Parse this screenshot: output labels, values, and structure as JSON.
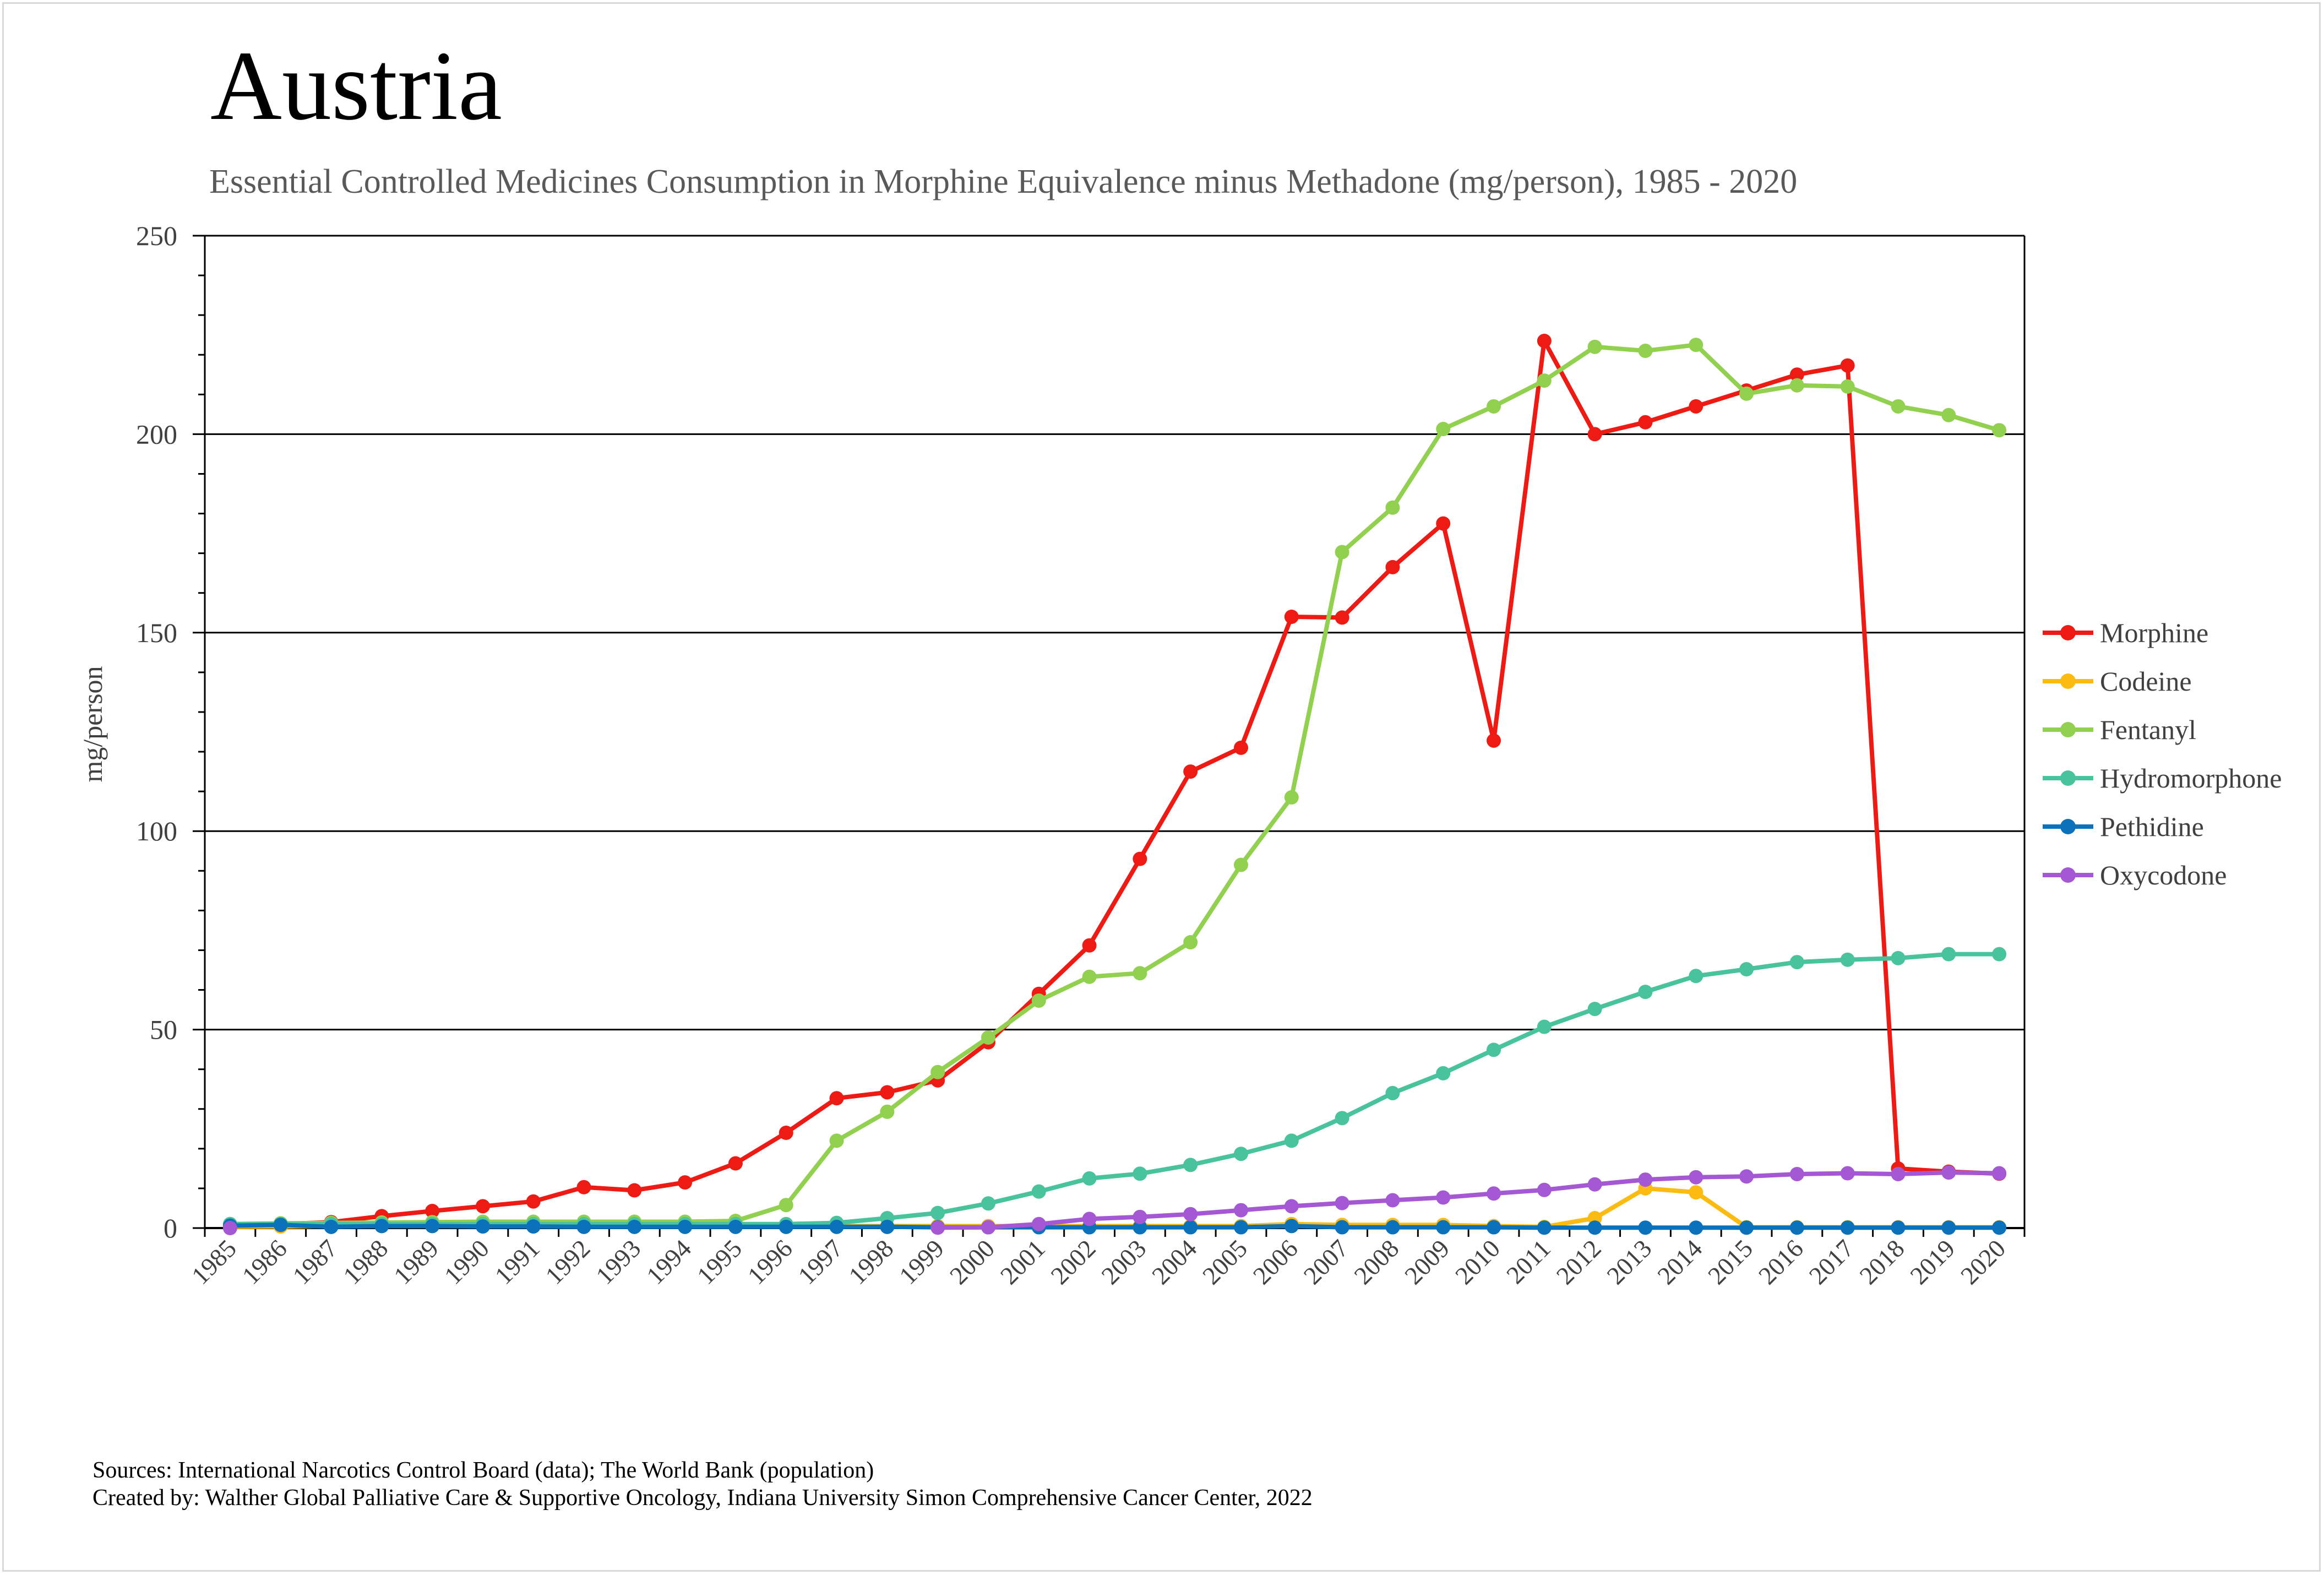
{
  "chart_data": {
    "type": "line",
    "title": "Austria",
    "subtitle": "Essential Controlled Medicines Consumption in Morphine Equivalence minus Methadone (mg/person), 1985 - 2020",
    "xlabel": "",
    "ylabel": "mg/person",
    "ylim": [
      0,
      250
    ],
    "yticks": [
      "0",
      "50",
      "100",
      "150",
      "200",
      "250"
    ],
    "grid": true,
    "legend_position": "right",
    "x": [
      "1985",
      "1986",
      "1987",
      "1988",
      "1989",
      "1990",
      "1991",
      "1992",
      "1993",
      "1994",
      "1995",
      "1996",
      "1997",
      "1998",
      "1999",
      "2000",
      "2001",
      "2002",
      "2003",
      "2004",
      "2005",
      "2006",
      "2007",
      "2008",
      "2009",
      "2010",
      "2011",
      "2012",
      "2013",
      "2014",
      "2015",
      "2016",
      "2017",
      "2018",
      "2019",
      "2020"
    ],
    "series": [
      {
        "name": "Morphine",
        "color": "#ee1b15",
        "values": [
          0.5,
          1.0,
          1.5,
          3.0,
          4.3,
          5.5,
          6.7,
          10.3,
          9.5,
          11.5,
          16.3,
          24.0,
          32.7,
          34.2,
          37.2,
          46.8,
          59.0,
          71.2,
          93.0,
          115.0,
          121.0,
          154.0,
          153.8,
          166.5,
          177.5,
          122.8,
          223.5,
          200.0,
          203.0,
          207.0,
          211.0,
          215.0,
          217.3,
          15.0,
          14.2,
          13.7
        ]
      },
      {
        "name": "Codeine",
        "color": "#fbbb10",
        "values": [
          0.3,
          0.4,
          0.5,
          0.5,
          0.5,
          0.5,
          0.5,
          0.5,
          0.5,
          0.5,
          0.5,
          0.5,
          0.5,
          0.5,
          0.5,
          0.5,
          0.5,
          0.5,
          0.5,
          0.5,
          0.5,
          1.0,
          0.8,
          0.8,
          0.8,
          0.5,
          0.3,
          2.5,
          10.0,
          9.0,
          0.2,
          0.2,
          0.2,
          0.2,
          0.2,
          0.2
        ]
      },
      {
        "name": "Fentanyl",
        "color": "#92d050",
        "values": [
          1.0,
          1.2,
          1.3,
          1.4,
          1.5,
          1.6,
          1.6,
          1.6,
          1.6,
          1.6,
          1.8,
          5.8,
          22.0,
          29.3,
          39.3,
          48.0,
          57.3,
          63.3,
          64.2,
          72.0,
          91.5,
          108.5,
          170.3,
          181.5,
          201.3,
          207.0,
          213.5,
          222.0,
          221.0,
          222.5,
          210.2,
          212.3,
          212.0,
          207.0,
          204.8,
          201.0
        ]
      },
      {
        "name": "Hydromorphone",
        "color": "#48c39b",
        "values": [
          1.0,
          1.0,
          1.0,
          1.0,
          1.0,
          1.0,
          1.0,
          1.0,
          1.0,
          1.0,
          1.0,
          1.0,
          1.3,
          2.5,
          3.8,
          6.2,
          9.2,
          12.5,
          13.7,
          15.9,
          18.7,
          22.0,
          27.7,
          34.0,
          39.0,
          44.9,
          50.7,
          55.2,
          59.5,
          63.5,
          65.2,
          67.0,
          67.6,
          68.0,
          69.0,
          69.0
        ]
      },
      {
        "name": "Pethidine",
        "color": "#0a71ba",
        "values": [
          0.6,
          0.8,
          0.3,
          0.5,
          0.5,
          0.4,
          0.4,
          0.3,
          0.3,
          0.3,
          0.3,
          0.3,
          0.3,
          0.3,
          0.2,
          0.2,
          0.2,
          0.2,
          0.2,
          0.2,
          0.2,
          0.5,
          0.2,
          0.2,
          0.2,
          0.2,
          0.1,
          0.1,
          0.1,
          0.1,
          0.1,
          0.1,
          0.1,
          0.1,
          0.1,
          0.1
        ]
      },
      {
        "name": "Oxycodone",
        "color": "#a458d3",
        "values": [
          0.0,
          null,
          null,
          null,
          null,
          null,
          null,
          null,
          null,
          null,
          null,
          null,
          null,
          null,
          0.1,
          0.2,
          1.0,
          2.3,
          2.8,
          3.5,
          4.5,
          5.5,
          6.3,
          7.0,
          7.7,
          8.7,
          9.6,
          11.0,
          12.2,
          12.8,
          13.0,
          13.6,
          13.8,
          13.6,
          14.0,
          13.8
        ]
      }
    ]
  },
  "footer": {
    "sources": "Sources: International Narcotics Control Board (data); The World Bank (population)",
    "created_by": "Created by: Walther Global Palliative Care & Supportive Oncology, Indiana University Simon Comprehensive Cancer Center, 2022"
  }
}
